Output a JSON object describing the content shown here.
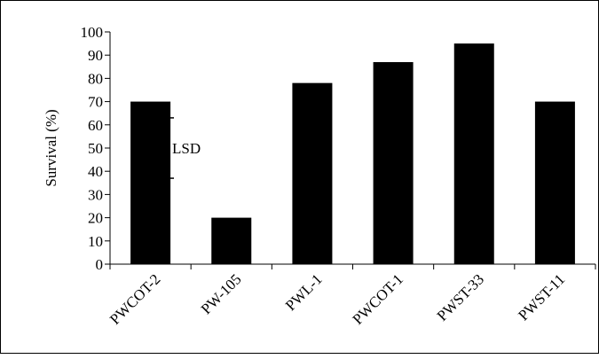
{
  "chart_data": {
    "type": "bar",
    "categories": [
      "PWCOT-2",
      "PW-105",
      "PWL-1",
      "PWCOT-1",
      "PWST-33",
      "PWST-11"
    ],
    "values": [
      70,
      20,
      78,
      87,
      95,
      70
    ],
    "ylabel": "Survival (%)",
    "xlabel": "",
    "ylim": [
      0,
      100
    ],
    "yticks": [
      0,
      10,
      20,
      30,
      40,
      50,
      60,
      70,
      80,
      90,
      100
    ],
    "grid": false,
    "bar_color": "#000000",
    "error_bar": {
      "label": "LSD",
      "low": 37,
      "high": 63,
      "position_category": "PWCOT-2"
    }
  }
}
